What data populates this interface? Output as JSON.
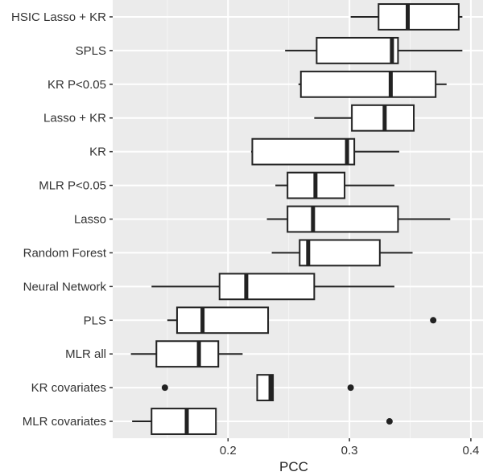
{
  "chart_data": {
    "type": "boxplot",
    "title": "",
    "xlabel": "PCC",
    "ylabel": "",
    "xlim": [
      0.105,
      0.41
    ],
    "xticks": [
      0.2,
      0.3,
      0.4
    ],
    "xtick_labels": [
      "0.2",
      "0.3",
      "0.4"
    ],
    "grid": true,
    "categories": [
      "HSIC Lasso + KR",
      "SPLS",
      "KR P<0.05",
      "Lasso + KR",
      "KR",
      "MLR P<0.05",
      "Lasso",
      "Random Forest",
      "Neural Network",
      "PLS",
      "MLR all",
      "KR covariates",
      "MLR covariates"
    ],
    "boxes": [
      {
        "min": 0.301,
        "q1": 0.324,
        "median": 0.348,
        "q3": 0.39,
        "max": 0.393,
        "outliers": []
      },
      {
        "min": 0.247,
        "q1": 0.273,
        "median": 0.335,
        "q3": 0.34,
        "max": 0.393,
        "outliers": []
      },
      {
        "min": 0.258,
        "q1": 0.26,
        "median": 0.334,
        "q3": 0.371,
        "max": 0.38,
        "outliers": []
      },
      {
        "min": 0.271,
        "q1": 0.302,
        "median": 0.329,
        "q3": 0.353,
        "max": 0.353,
        "outliers": []
      },
      {
        "min": 0.219,
        "q1": 0.22,
        "median": 0.298,
        "q3": 0.304,
        "max": 0.341,
        "outliers": []
      },
      {
        "min": 0.239,
        "q1": 0.249,
        "median": 0.272,
        "q3": 0.296,
        "max": 0.337,
        "outliers": []
      },
      {
        "min": 0.232,
        "q1": 0.249,
        "median": 0.27,
        "q3": 0.34,
        "max": 0.383,
        "outliers": []
      },
      {
        "min": 0.236,
        "q1": 0.259,
        "median": 0.266,
        "q3": 0.325,
        "max": 0.352,
        "outliers": []
      },
      {
        "min": 0.137,
        "q1": 0.193,
        "median": 0.215,
        "q3": 0.271,
        "max": 0.337,
        "outliers": []
      },
      {
        "min": 0.15,
        "q1": 0.158,
        "median": 0.179,
        "q3": 0.233,
        "max": 0.233,
        "outliers": [
          0.369
        ]
      },
      {
        "min": 0.12,
        "q1": 0.141,
        "median": 0.176,
        "q3": 0.192,
        "max": 0.212,
        "outliers": []
      },
      {
        "min": 0.224,
        "q1": 0.224,
        "median": 0.235,
        "q3": 0.237,
        "max": 0.237,
        "outliers": [
          0.148,
          0.301
        ]
      },
      {
        "min": 0.121,
        "q1": 0.137,
        "median": 0.166,
        "q3": 0.19,
        "max": 0.19,
        "outliers": [
          0.333
        ]
      }
    ],
    "colors": {
      "panel": "#ebebeb",
      "grid_major": "#ffffff",
      "grid_minor": "#f5f5f5",
      "box_fill": "#ffffff",
      "line": "#222222"
    }
  }
}
